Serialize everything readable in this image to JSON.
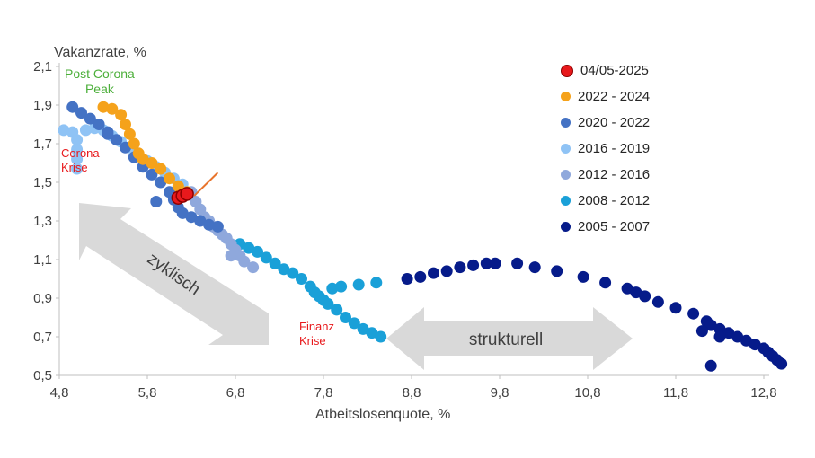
{
  "chart_data": {
    "type": "scatter",
    "xlabel": "Atbeitslosenquote, %",
    "ylabel": "Vakanzrate, %",
    "xlim": [
      4.8,
      12.8
    ],
    "ylim": [
      0.5,
      2.1
    ],
    "x_ticks": [
      "4,8",
      "5,8",
      "6,8",
      "7,8",
      "8,8",
      "9,8",
      "10,8",
      "11,8",
      "12,8"
    ],
    "y_ticks": [
      "2,1",
      "1,9",
      "1,7",
      "1,5",
      "1,3",
      "1,1",
      "0,9",
      "0,7",
      "0,5"
    ],
    "grid": false,
    "legend_position": "right",
    "series": [
      {
        "name": "04/05-2025",
        "color": "#e8191c",
        "outline": "#8b0000",
        "points": [
          [
            6.15,
            1.42
          ],
          [
            6.2,
            1.43
          ],
          [
            6.25,
            1.44
          ]
        ]
      },
      {
        "name": "2022 - 2024",
        "color": "#f5a21b",
        "points": [
          [
            5.3,
            1.89
          ],
          [
            5.4,
            1.88
          ],
          [
            5.5,
            1.85
          ],
          [
            5.55,
            1.8
          ],
          [
            5.6,
            1.75
          ],
          [
            5.65,
            1.7
          ],
          [
            5.7,
            1.65
          ],
          [
            5.75,
            1.62
          ],
          [
            5.85,
            1.6
          ],
          [
            5.95,
            1.57
          ],
          [
            6.05,
            1.52
          ],
          [
            6.15,
            1.48
          ],
          [
            6.25,
            1.45
          ]
        ]
      },
      {
        "name": "2020 - 2022",
        "color": "#4472c4",
        "points": [
          [
            4.95,
            1.89
          ],
          [
            5.05,
            1.86
          ],
          [
            5.15,
            1.83
          ],
          [
            5.25,
            1.8
          ],
          [
            5.35,
            1.76
          ],
          [
            5.45,
            1.72
          ],
          [
            5.55,
            1.68
          ],
          [
            5.65,
            1.63
          ],
          [
            5.75,
            1.58
          ],
          [
            5.85,
            1.54
          ],
          [
            5.95,
            1.5
          ],
          [
            6.05,
            1.45
          ],
          [
            6.1,
            1.41
          ],
          [
            6.15,
            1.37
          ],
          [
            6.2,
            1.34
          ],
          [
            6.3,
            1.32
          ],
          [
            6.4,
            1.3
          ],
          [
            6.5,
            1.28
          ],
          [
            6.6,
            1.27
          ],
          [
            5.9,
            1.4
          ],
          [
            5.35,
            1.75
          ]
        ]
      },
      {
        "name": "2016 - 2019",
        "color": "#8fc3f5",
        "points": [
          [
            4.85,
            1.77
          ],
          [
            4.95,
            1.76
          ],
          [
            5.0,
            1.72
          ],
          [
            5.0,
            1.67
          ],
          [
            5.0,
            1.62
          ],
          [
            5.0,
            1.57
          ],
          [
            5.1,
            1.77
          ],
          [
            5.2,
            1.78
          ],
          [
            5.3,
            1.77
          ],
          [
            5.4,
            1.74
          ],
          [
            5.5,
            1.71
          ],
          [
            5.6,
            1.68
          ],
          [
            5.7,
            1.64
          ],
          [
            5.8,
            1.61
          ],
          [
            5.9,
            1.58
          ],
          [
            6.0,
            1.55
          ],
          [
            6.1,
            1.52
          ],
          [
            6.2,
            1.49
          ]
        ]
      },
      {
        "name": "2012 - 2016",
        "color": "#8fa8dc",
        "points": [
          [
            6.3,
            1.45
          ],
          [
            6.35,
            1.4
          ],
          [
            6.4,
            1.36
          ],
          [
            6.45,
            1.32
          ],
          [
            6.5,
            1.3
          ],
          [
            6.55,
            1.27
          ],
          [
            6.6,
            1.25
          ],
          [
            6.65,
            1.23
          ],
          [
            6.7,
            1.21
          ],
          [
            6.75,
            1.18
          ],
          [
            6.8,
            1.15
          ],
          [
            6.85,
            1.12
          ],
          [
            6.9,
            1.09
          ],
          [
            7.0,
            1.06
          ],
          [
            6.75,
            1.12
          ]
        ]
      },
      {
        "name": "2008 - 2012",
        "color": "#1aa0d8",
        "points": [
          [
            6.85,
            1.18
          ],
          [
            6.95,
            1.16
          ],
          [
            7.05,
            1.14
          ],
          [
            7.15,
            1.11
          ],
          [
            7.25,
            1.08
          ],
          [
            7.35,
            1.05
          ],
          [
            7.45,
            1.03
          ],
          [
            7.55,
            1.0
          ],
          [
            7.65,
            0.96
          ],
          [
            7.7,
            0.93
          ],
          [
            7.75,
            0.91
          ],
          [
            7.8,
            0.89
          ],
          [
            7.85,
            0.87
          ],
          [
            7.95,
            0.84
          ],
          [
            8.05,
            0.8
          ],
          [
            8.15,
            0.77
          ],
          [
            8.25,
            0.74
          ],
          [
            8.35,
            0.72
          ],
          [
            8.45,
            0.7
          ],
          [
            7.9,
            0.95
          ],
          [
            8.0,
            0.96
          ],
          [
            8.2,
            0.97
          ],
          [
            8.4,
            0.98
          ]
        ]
      },
      {
        "name": "2005 - 2007",
        "color": "#061b8a",
        "points": [
          [
            8.75,
            1.0
          ],
          [
            8.9,
            1.01
          ],
          [
            9.05,
            1.03
          ],
          [
            9.2,
            1.04
          ],
          [
            9.35,
            1.06
          ],
          [
            9.5,
            1.07
          ],
          [
            9.65,
            1.08
          ],
          [
            9.75,
            1.08
          ],
          [
            10.0,
            1.08
          ],
          [
            10.2,
            1.06
          ],
          [
            10.45,
            1.04
          ],
          [
            10.75,
            1.01
          ],
          [
            11.0,
            0.98
          ],
          [
            11.25,
            0.95
          ],
          [
            11.35,
            0.93
          ],
          [
            11.45,
            0.91
          ],
          [
            11.6,
            0.88
          ],
          [
            11.8,
            0.85
          ],
          [
            12.0,
            0.82
          ],
          [
            12.15,
            0.78
          ],
          [
            12.2,
            0.76
          ],
          [
            12.3,
            0.74
          ],
          [
            12.4,
            0.72
          ],
          [
            12.5,
            0.7
          ],
          [
            12.6,
            0.68
          ],
          [
            12.7,
            0.66
          ],
          [
            12.8,
            0.64
          ],
          [
            12.85,
            0.62
          ],
          [
            12.9,
            0.6
          ],
          [
            12.95,
            0.58
          ],
          [
            13.0,
            0.56
          ],
          [
            12.2,
            0.55
          ],
          [
            12.1,
            0.73
          ],
          [
            12.3,
            0.7
          ]
        ]
      }
    ],
    "annotations": {
      "post_corona": "Post Corona\nPeak",
      "corona": "Corona\nKrise",
      "finanz": "Finanz\nKrise",
      "zyklisch": "zyklisch",
      "strukturell": "strukturell"
    },
    "colors": {
      "axis": "#bfbfbf",
      "tick_text": "#404040",
      "arrow_fill": "#d9d9d9",
      "green_annotation": "#4caf3a",
      "red_annotation": "#e8191c",
      "pointer": "#e8742c"
    }
  }
}
